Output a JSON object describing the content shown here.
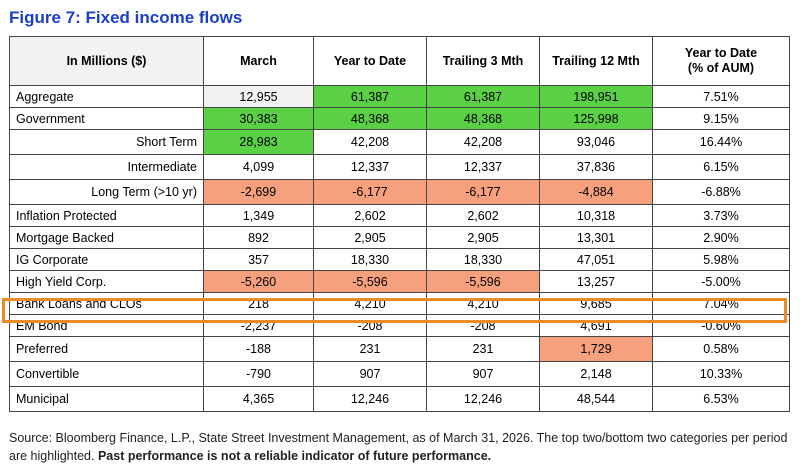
{
  "title": "Figure 7: Fixed income flows",
  "chart_data": {
    "type": "table",
    "columns": [
      "In Millions ($)",
      "March",
      "Year to Date",
      "Trailing 3 Mth",
      "Trailing 12 Mth",
      "Year to Date (% of AUM)"
    ],
    "header_lines": {
      "c0": "In Millions ($)",
      "c1": "March",
      "c2": "Year to Date",
      "c3": "Trailing 3 Mth",
      "c4": "Trailing 12 Mth",
      "c5a": "Year to Date",
      "c5b": "(% of AUM)"
    },
    "rows": [
      {
        "label": "Aggregate",
        "values": [
          "12,955",
          "61,387",
          "61,387",
          "198,951",
          "7.51%"
        ]
      },
      {
        "label": "Government",
        "values": [
          "30,383",
          "48,368",
          "48,368",
          "125,998",
          "9.15%"
        ]
      },
      {
        "label": "Short Term",
        "values": [
          "28,983",
          "42,208",
          "42,208",
          "93,046",
          "16.44%"
        ]
      },
      {
        "label": "Intermediate",
        "values": [
          "4,099",
          "12,337",
          "12,337",
          "37,836",
          "6.15%"
        ]
      },
      {
        "label": "Long Term (>10 yr)",
        "values": [
          "-2,699",
          "-6,177",
          "-6,177",
          "-4,884",
          "-6.88%"
        ]
      },
      {
        "label": "Inflation Protected",
        "values": [
          "1,349",
          "2,602",
          "2,602",
          "10,318",
          "3.73%"
        ]
      },
      {
        "label": "Mortgage Backed",
        "values": [
          "892",
          "2,905",
          "2,905",
          "13,301",
          "2.90%"
        ]
      },
      {
        "label": "IG Corporate",
        "values": [
          "357",
          "18,330",
          "18,330",
          "47,051",
          "5.98%"
        ]
      },
      {
        "label": "High Yield Corp.",
        "values": [
          "-5,260",
          "-5,596",
          "-5,596",
          "13,257",
          "-5.00%"
        ]
      },
      {
        "label": "Bank Loans and CLOs",
        "values": [
          "218",
          "4,210",
          "4,210",
          "9,685",
          "7.04%"
        ]
      },
      {
        "label": "EM Bond",
        "values": [
          "-2,237",
          "-208",
          "-208",
          "4,691",
          "-0.60%"
        ]
      },
      {
        "label": "Preferred",
        "values": [
          "-188",
          "231",
          "231",
          "1,729",
          "0.58%"
        ]
      },
      {
        "label": "Convertible",
        "values": [
          "-790",
          "907",
          "907",
          "2,148",
          "10.33%"
        ]
      },
      {
        "label": "Municipal",
        "values": [
          "4,365",
          "12,246",
          "12,246",
          "48,544",
          "6.53%"
        ]
      }
    ],
    "highlight_colors": {
      "top": "#5ad145",
      "bottom": "#f6a07e",
      "outline": "#f08a25"
    },
    "outlined_row": "Bank Loans and CLOs"
  },
  "source": {
    "text": "Source: Bloomberg Finance, L.P., State Street Investment Management, as of March 31, 2026. The top two/bottom two categories per period are highlighted.",
    "bold": "Past performance is not a reliable indicator of future performance."
  }
}
